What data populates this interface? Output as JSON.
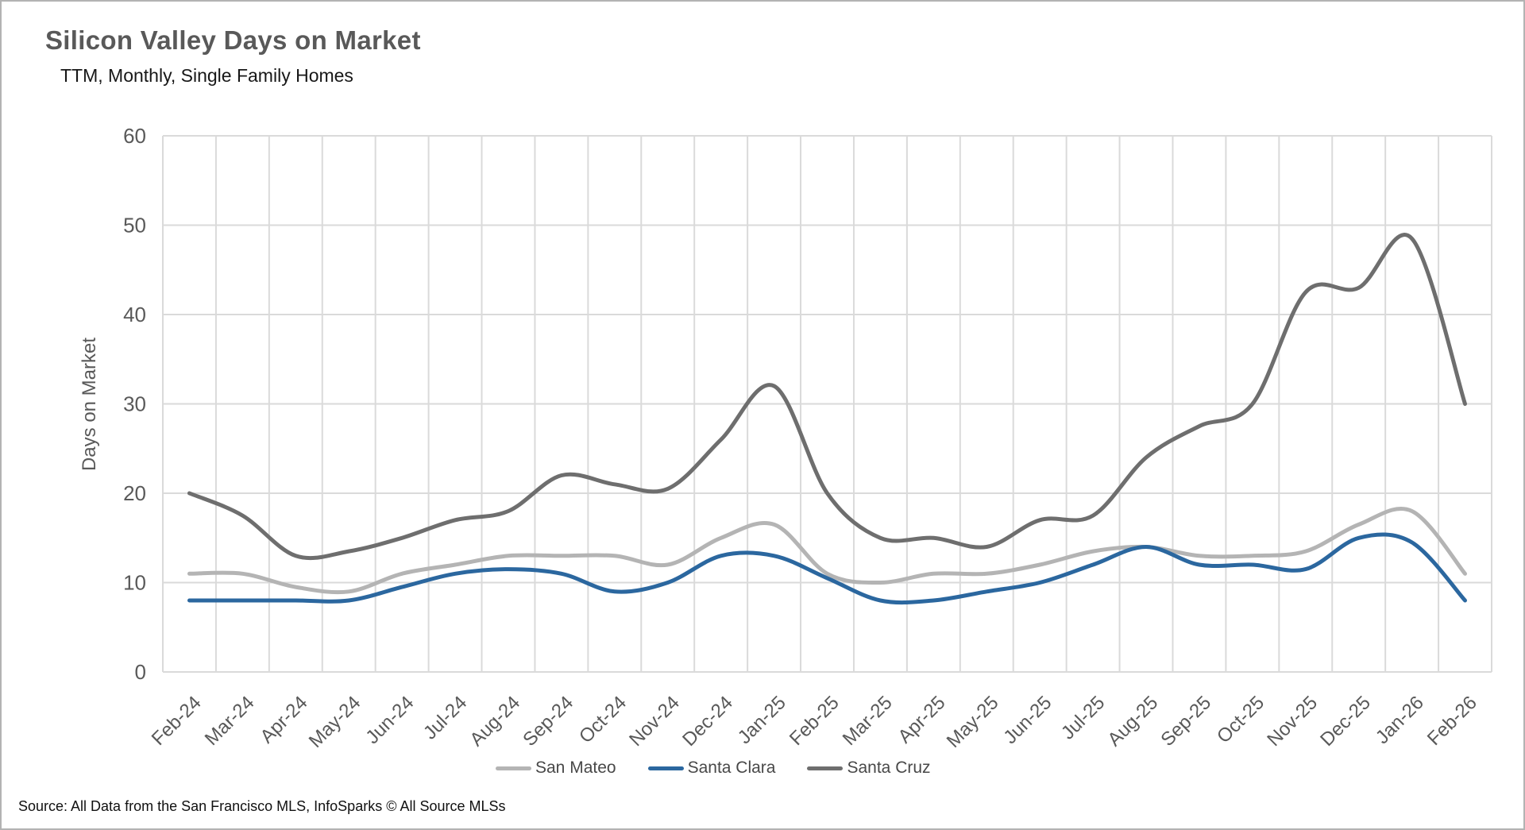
{
  "header": {
    "title": "Silicon Valley Days on Market",
    "subtitle": "TTM, Monthly, Single Family Homes"
  },
  "source": {
    "text": "Source: All Data from the San Francisco MLS, InfoSparks © All Source MLSs"
  },
  "chart_data": {
    "type": "line",
    "smooth": true,
    "title": "Silicon Valley Days on Market",
    "subtitle": "TTM, Monthly, Single Family Homes",
    "xlabel": "",
    "ylabel": "Days on Market",
    "ylim": [
      0,
      60
    ],
    "ytick_step": 10,
    "grid": true,
    "legend_position": "bottom",
    "grid_color": "#dadada",
    "axis_text_color": "#595959",
    "categories": [
      "Feb-24",
      "Mar-24",
      "Apr-24",
      "May-24",
      "Jun-24",
      "Jul-24",
      "Aug-24",
      "Sep-24",
      "Oct-24",
      "Nov-24",
      "Dec-24",
      "Jan-25",
      "Feb-25",
      "Mar-25",
      "Apr-25",
      "May-25",
      "Jun-25",
      "Jul-25",
      "Aug-25",
      "Sep-25",
      "Oct-25",
      "Nov-25",
      "Dec-25",
      "Jan-26",
      "Feb-26"
    ],
    "series": [
      {
        "name": "San Mateo",
        "color": "#b4b4b4",
        "values": [
          11,
          11,
          9.5,
          9,
          11,
          12,
          13,
          13,
          13,
          12,
          15,
          16.5,
          11,
          10,
          11,
          11,
          12,
          13.5,
          14,
          13,
          13,
          13.5,
          16.5,
          18,
          11
        ]
      },
      {
        "name": "Santa Clara",
        "color": "#2b679f",
        "values": [
          8,
          8,
          8,
          8,
          9.5,
          11,
          11.5,
          11,
          9,
          10,
          13,
          13,
          10.5,
          8,
          8,
          9,
          10,
          12,
          14,
          12,
          12,
          11.5,
          15,
          14.5,
          8
        ]
      },
      {
        "name": "Santa Cruz",
        "color": "#6e6e6e",
        "values": [
          20,
          17.5,
          13,
          13.5,
          15,
          17,
          18,
          22,
          21,
          20.5,
          26,
          32,
          20,
          15,
          15,
          14,
          17,
          17.5,
          24,
          27.5,
          30,
          42.5,
          43,
          48.5,
          30
        ]
      }
    ]
  }
}
